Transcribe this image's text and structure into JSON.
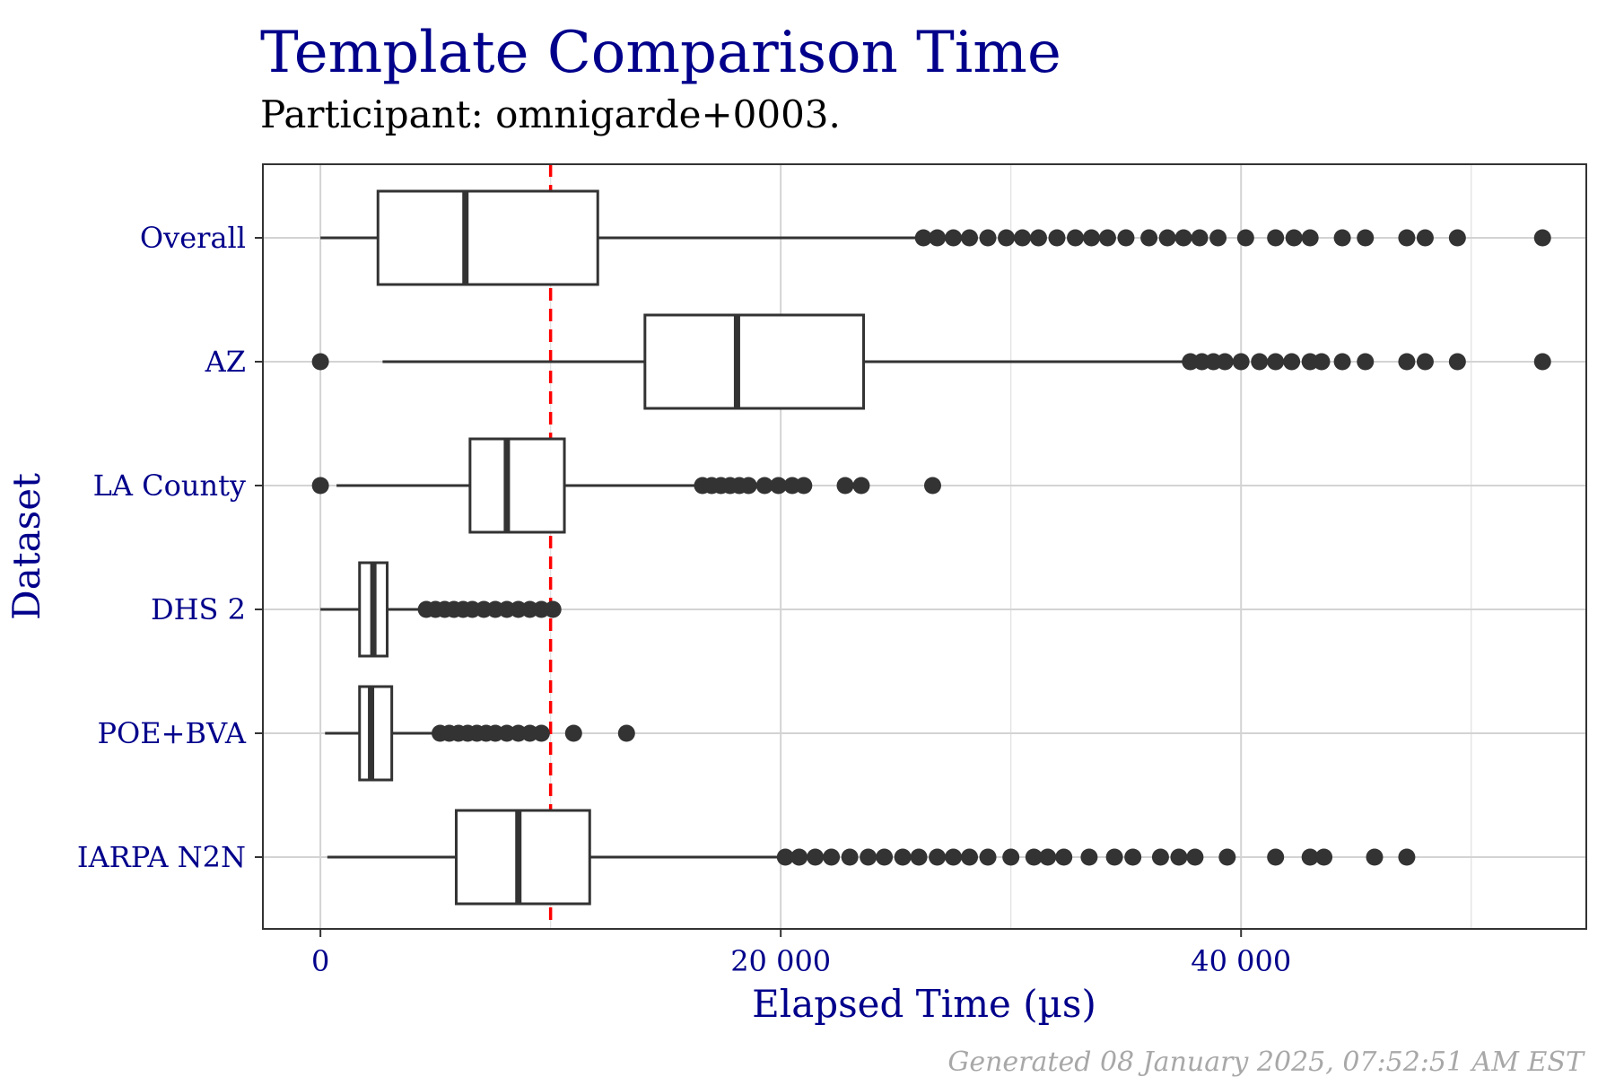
{
  "chart_data": {
    "type": "box",
    "title": "Template Comparison Time",
    "subtitle": "Participant: omnigarde+0003.",
    "xlabel": "Elapsed Time (µs)",
    "ylabel": "Dataset",
    "caption": "Generated 08 January 2025, 07:52:51 AM EST",
    "xlim": [
      -2500,
      55000
    ],
    "x_ticks": [
      0,
      20000,
      40000
    ],
    "x_tick_labels": [
      "0",
      "20 000",
      "40 000"
    ],
    "reference_line": {
      "x": 10000,
      "color": "#FF0000",
      "style": "dashed"
    },
    "grid": true,
    "colors": {
      "title": "#00008B",
      "axis_text": "#00008B",
      "box": "#333333",
      "grid": "#D3D3D3",
      "caption": "#A8A8A8"
    },
    "categories": [
      "Overall",
      "AZ",
      "LA County",
      "DHS 2",
      "POE+BVA",
      "IARPA N2N"
    ],
    "boxes": [
      {
        "name": "Overall",
        "whisker_low": 0,
        "q1": 2500,
        "median": 6300,
        "q3": 12050,
        "whisker_high": 26000,
        "outliers": [
          26200,
          26800,
          27500,
          28200,
          29000,
          29800,
          30500,
          31200,
          32000,
          32800,
          33500,
          34200,
          35000,
          36000,
          36800,
          37500,
          38200,
          39000,
          40200,
          41500,
          42300,
          43000,
          44400,
          45400,
          47200,
          48000,
          49400,
          53100
        ]
      },
      {
        "name": "AZ",
        "whisker_low": 2700,
        "q1": 14100,
        "median": 18100,
        "q3": 23600,
        "whisker_high": 37600,
        "outliers": [
          0,
          37800,
          38300,
          38800,
          39300,
          40000,
          40800,
          41500,
          42200,
          43000,
          43500,
          44400,
          45400,
          47200,
          48000,
          49400,
          53100
        ]
      },
      {
        "name": "LA County",
        "whisker_low": 700,
        "q1": 6500,
        "median": 8100,
        "q3": 10600,
        "whisker_high": 16500,
        "outliers": [
          0,
          16600,
          17000,
          17400,
          17800,
          18200,
          18600,
          19300,
          19900,
          20500,
          21000,
          22800,
          23500,
          26600
        ]
      },
      {
        "name": "DHS 2",
        "whisker_low": 0,
        "q1": 1700,
        "median": 2300,
        "q3": 2900,
        "whisker_high": 4500,
        "outliers": [
          4600,
          5000,
          5400,
          5800,
          6200,
          6600,
          7100,
          7600,
          8100,
          8600,
          9100,
          9600,
          10100
        ]
      },
      {
        "name": "POE+BVA",
        "whisker_low": 200,
        "q1": 1700,
        "median": 2200,
        "q3": 3100,
        "whisker_high": 5000,
        "outliers": [
          5200,
          5600,
          6000,
          6400,
          6800,
          7200,
          7600,
          8100,
          8600,
          9100,
          9600,
          11000,
          13300
        ]
      },
      {
        "name": "IARPA N2N",
        "whisker_low": 300,
        "q1": 5900,
        "median": 8600,
        "q3": 11700,
        "whisker_high": 20000,
        "outliers": [
          20200,
          20800,
          21500,
          22200,
          23000,
          23800,
          24500,
          25300,
          26000,
          26800,
          27500,
          28200,
          29000,
          30000,
          31000,
          31600,
          32300,
          33400,
          34500,
          35300,
          36500,
          37300,
          38000,
          39400,
          41500,
          43000,
          43600,
          45800,
          47200
        ]
      }
    ]
  }
}
